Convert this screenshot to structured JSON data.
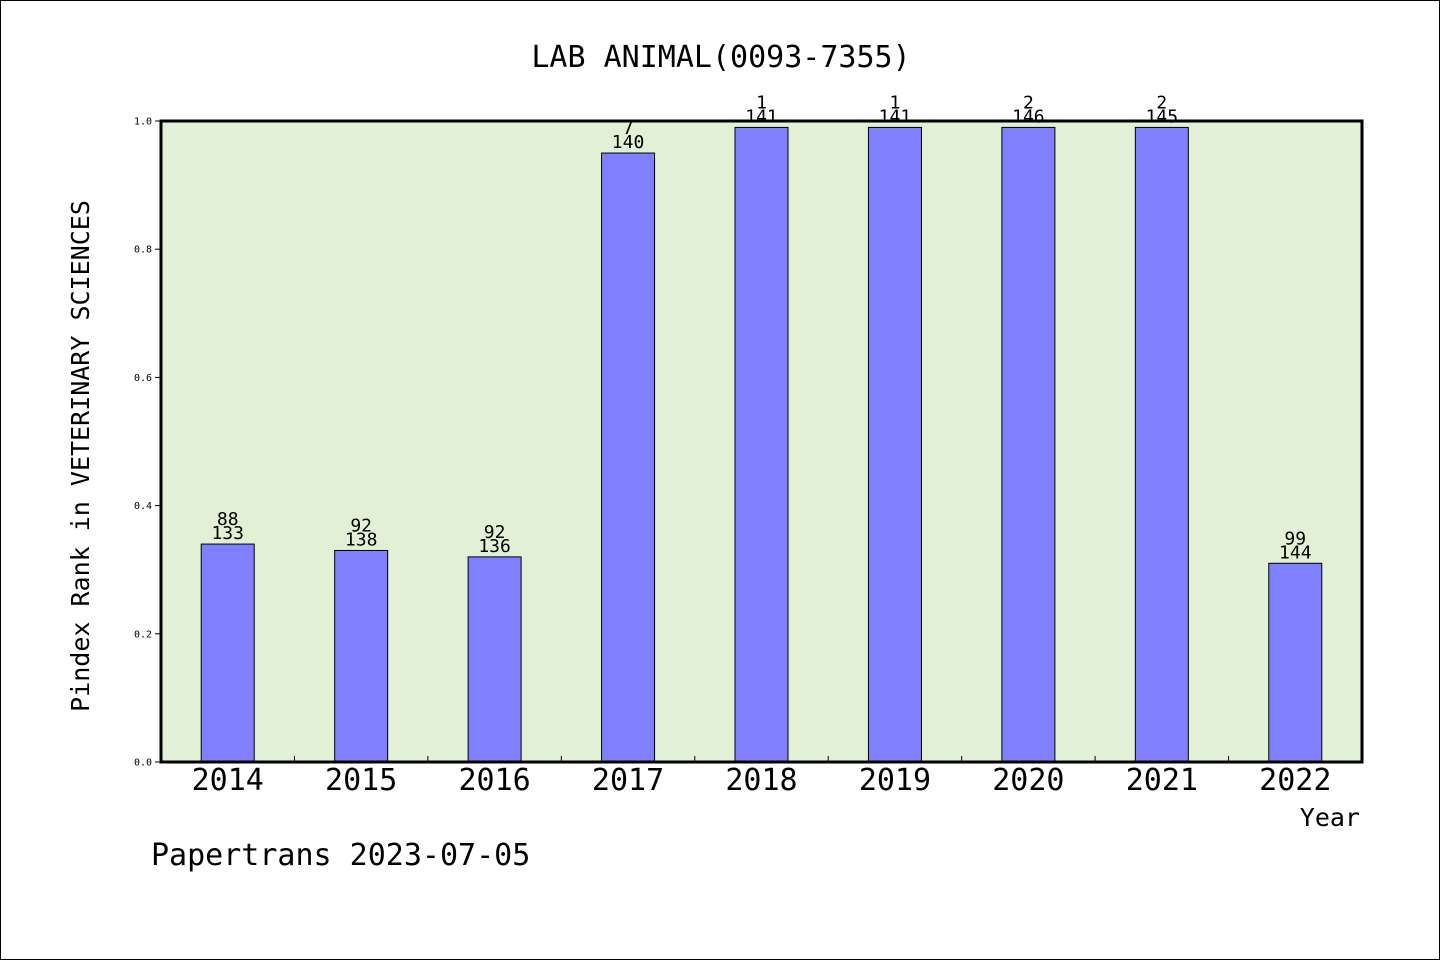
{
  "chart_data": {
    "type": "bar",
    "title": "LAB ANIMAL(0093-7355)",
    "xlabel": "Year",
    "ylabel": "Pindex Rank in VETERINARY SCIENCES",
    "credit": "Papertrans 2023-07-05",
    "categories": [
      "2014",
      "2015",
      "2016",
      "2017",
      "2018",
      "2019",
      "2020",
      "2021",
      "2022"
    ],
    "values": [
      0.34,
      0.33,
      0.32,
      0.95,
      0.99,
      0.99,
      0.99,
      0.99,
      0.31
    ],
    "rank_labels": [
      "88",
      "92",
      "92",
      "7",
      "1",
      "1",
      "2",
      "2",
      "99"
    ],
    "total_labels": [
      "133",
      "138",
      "136",
      "140",
      "141",
      "141",
      "146",
      "145",
      "144"
    ],
    "ylim": [
      0,
      1.0
    ],
    "yticks": [
      "0.0",
      "0.2",
      "0.4",
      "0.6",
      "0.8",
      "1.0"
    ],
    "grid": false,
    "legend": "none",
    "colors": {
      "plot_background": "#e2f0d6",
      "bar_fill": "#8080ff",
      "bar_stroke": "#000000"
    }
  }
}
